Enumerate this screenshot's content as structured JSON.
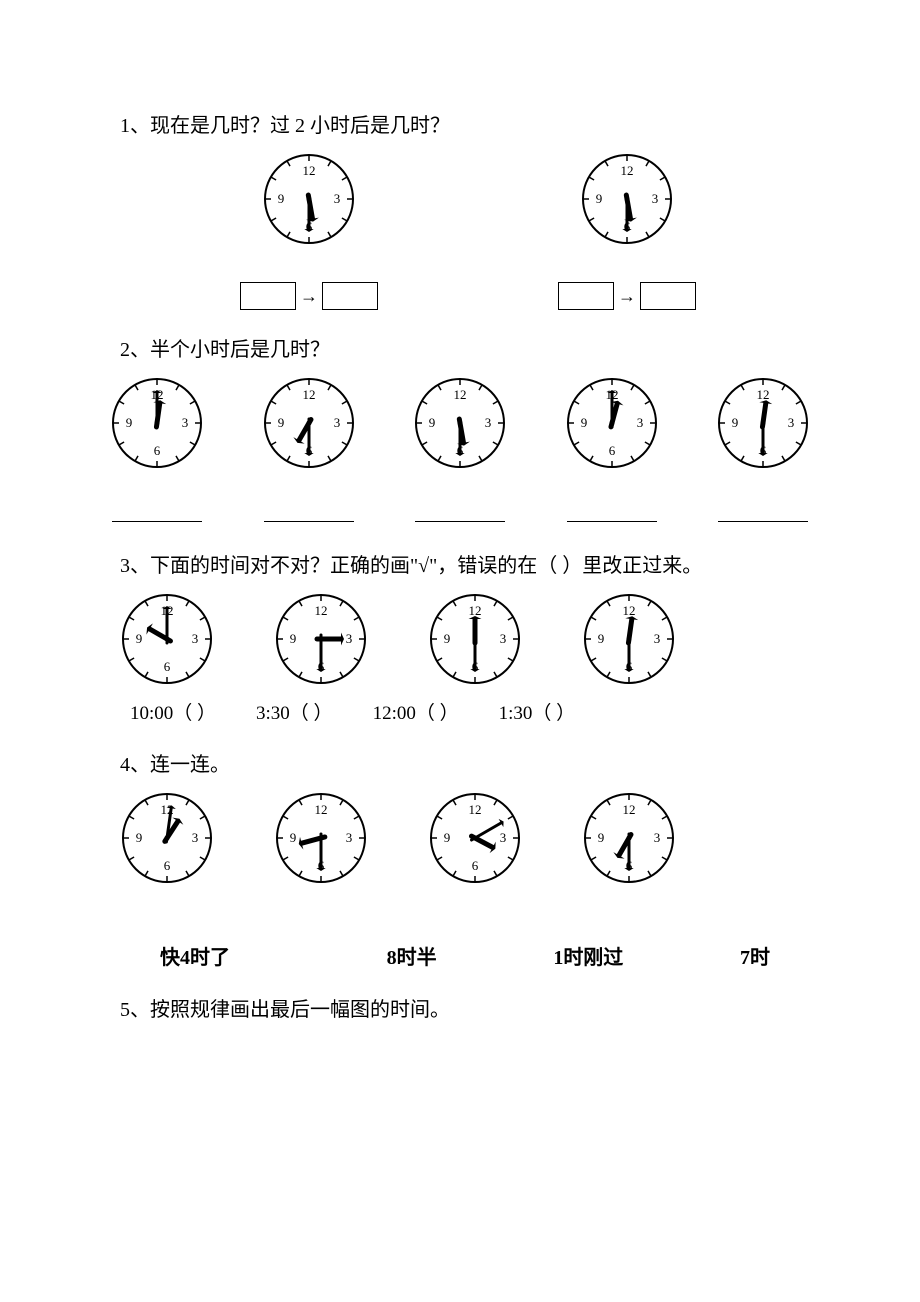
{
  "page": {
    "bg_color": "#ffffff",
    "text_color": "#000000",
    "font_family": "SimSun, serif",
    "body_fontsize": 20
  },
  "clock_style": {
    "radius": 44,
    "stroke_color": "#000000",
    "stroke_width": 2,
    "tick_length": 6,
    "num_fontsize": 13,
    "num_offset": 28,
    "hand_stroke": "#000000",
    "hour_hand_length": 20,
    "hour_hand_width": 5,
    "minute_hand_length": 30,
    "minute_hand_width": 3
  },
  "q1": {
    "text": "1、现在是几时？过 2 小时后是几时？",
    "clocks": [
      {
        "hour_angle": 170,
        "minute_angle": 180,
        "variant": "q1"
      },
      {
        "hour_angle": 170,
        "minute_angle": 180,
        "variant": "q1"
      }
    ]
  },
  "q2": {
    "text": "2、半个小时后是几时？",
    "clocks": [
      {
        "hour_angle": 8,
        "minute_angle": 0,
        "variant": "std"
      },
      {
        "hour_angle": 210,
        "minute_angle": 180,
        "variant": "std"
      },
      {
        "hour_angle": 170,
        "minute_angle": 180,
        "variant": "std"
      },
      {
        "hour_angle": 15,
        "minute_angle": 0,
        "variant": "std"
      },
      {
        "hour_angle": 8,
        "minute_angle": 180,
        "variant": "std"
      }
    ]
  },
  "q3": {
    "text": "3、下面的时间对不对？正确的画\"√\"，错误的在（  ）里改正过来。",
    "clocks": [
      {
        "hour_angle": 300,
        "minute_angle": 0,
        "variant": "std"
      },
      {
        "hour_angle": 90,
        "minute_angle": 180,
        "variant": "std"
      },
      {
        "hour_angle": 0,
        "minute_angle": 180,
        "variant": "std"
      },
      {
        "hour_angle": 8,
        "minute_angle": 180,
        "variant": "std"
      }
    ],
    "labels": [
      "10:00（       ）",
      "3:30（       ）",
      "12:00（       ）",
      "1:30（       ）"
    ]
  },
  "q4": {
    "text": "4、连一连。",
    "clocks": [
      {
        "hour_angle": 33,
        "minute_angle": 8,
        "variant": "std"
      },
      {
        "hour_angle": 255,
        "minute_angle": 180,
        "variant": "std"
      },
      {
        "hour_angle": 118,
        "minute_angle": 60,
        "variant": "std"
      },
      {
        "hour_angle": 210,
        "minute_angle": 180,
        "variant": "std"
      }
    ],
    "labels": [
      "快4时了",
      "8时半",
      "1时刚过",
      "7时"
    ]
  },
  "q5": {
    "text": "5、按照规律画出最后一幅图的时间。"
  }
}
